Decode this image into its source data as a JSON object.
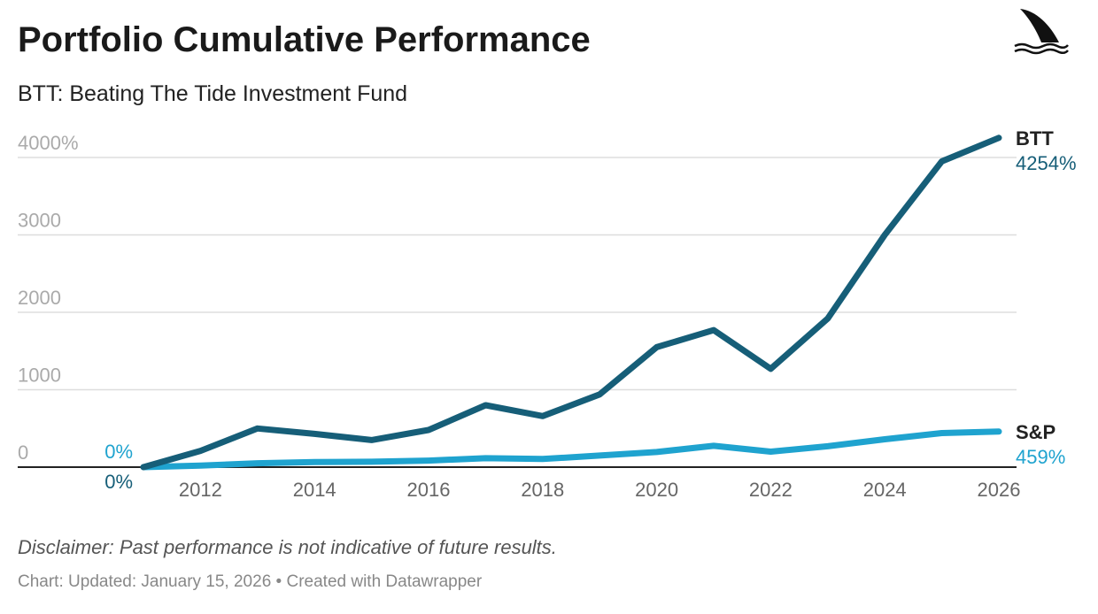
{
  "header": {
    "title": "Portfolio Cumulative Performance",
    "subtitle": "BTT: Beating The Tide Investment Fund"
  },
  "logo": {
    "icon": "shark-fin-icon"
  },
  "chart_data": {
    "type": "line",
    "title": "Portfolio Cumulative Performance",
    "subtitle": "BTT: Beating The Tide Investment Fund",
    "xlabel": "",
    "ylabel": "",
    "xlim": [
      2011,
      2026
    ],
    "ylim": [
      0,
      4000
    ],
    "x_ticks": [
      2012,
      2014,
      2016,
      2018,
      2020,
      2022,
      2024,
      2026
    ],
    "y_ticks": [
      {
        "value": 0,
        "label": "0"
      },
      {
        "value": 1000,
        "label": "1000"
      },
      {
        "value": 2000,
        "label": "2000"
      },
      {
        "value": 3000,
        "label": "3000"
      },
      {
        "value": 4000,
        "label": "4000%"
      }
    ],
    "grid": true,
    "legend": "direct labels at line ends",
    "x": [
      2011,
      2012,
      2013,
      2014,
      2015,
      2016,
      2017,
      2018,
      2019,
      2020,
      2021,
      2022,
      2023,
      2024,
      2025,
      2026
    ],
    "series": [
      {
        "name": "BTT",
        "color": "#165e78",
        "start_label": "0%",
        "end_label": "4254%",
        "values": [
          0,
          210,
          500,
          430,
          350,
          480,
          800,
          660,
          940,
          1550,
          1770,
          1270,
          1920,
          3000,
          3950,
          4254
        ]
      },
      {
        "name": "S&P",
        "color": "#1fa3cf",
        "start_label": "0%",
        "end_label": "459%",
        "values": [
          0,
          20,
          50,
          65,
          70,
          85,
          115,
          105,
          150,
          195,
          275,
          200,
          270,
          360,
          440,
          459
        ]
      }
    ]
  },
  "footer": {
    "disclaimer": "Disclaimer: Past performance is not indicative of future results.",
    "source_prefix": "Chart: ",
    "updated": "Updated: January 15, 2026",
    "separator": " • ",
    "credit": "Created with Datawrapper"
  }
}
